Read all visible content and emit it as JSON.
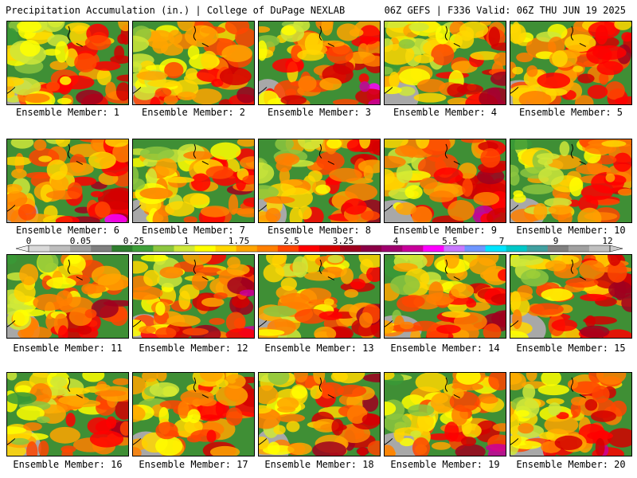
{
  "header": {
    "title": "Precipitation Accumulation (in.) | College of DuPage NEXLAB",
    "run_info": "06Z GEFS | F336 Valid: 06Z THU JUN 19 2025"
  },
  "legend": {
    "labels": [
      "0",
      "0.05",
      "0.25",
      "1",
      "1.75",
      "2.5",
      "3.25",
      "4",
      "5.5",
      "7",
      "9",
      "12"
    ],
    "colors": [
      "#d9d9d9",
      "#bdbdbd",
      "#a0a0a0",
      "#7f7f7f",
      "#2e7d2e",
      "#3fa03a",
      "#8cc63f",
      "#cfe83a",
      "#ffff00",
      "#ffd700",
      "#ffa500",
      "#ff7f00",
      "#ff4500",
      "#ff0000",
      "#d40000",
      "#a0001e",
      "#8b0046",
      "#a0006e",
      "#c8009b",
      "#ff00ff",
      "#c878ff",
      "#6e96ff",
      "#00e5ff",
      "#00c8c8",
      "#40a0a0",
      "#808080",
      "#a0a0a0",
      "#c0c0c0"
    ]
  },
  "panels": [
    {
      "label": "Ensemble Member: 1"
    },
    {
      "label": "Ensemble Member: 2"
    },
    {
      "label": "Ensemble Member: 3"
    },
    {
      "label": "Ensemble Member: 4"
    },
    {
      "label": "Ensemble Member: 5"
    },
    {
      "label": "Ensemble Member: 6"
    },
    {
      "label": "Ensemble Member: 7"
    },
    {
      "label": "Ensemble Member: 8"
    },
    {
      "label": "Ensemble Member: 9"
    },
    {
      "label": "Ensemble Member: 10"
    },
    {
      "label": "Ensemble Member: 11"
    },
    {
      "label": "Ensemble Member: 12"
    },
    {
      "label": "Ensemble Member: 13"
    },
    {
      "label": "Ensemble Member: 14"
    },
    {
      "label": "Ensemble Member: 15"
    },
    {
      "label": "Ensemble Member: 16"
    },
    {
      "label": "Ensemble Member: 17"
    },
    {
      "label": "Ensemble Member: 18"
    },
    {
      "label": "Ensemble Member: 19"
    },
    {
      "label": "Ensemble Member: 20"
    }
  ]
}
